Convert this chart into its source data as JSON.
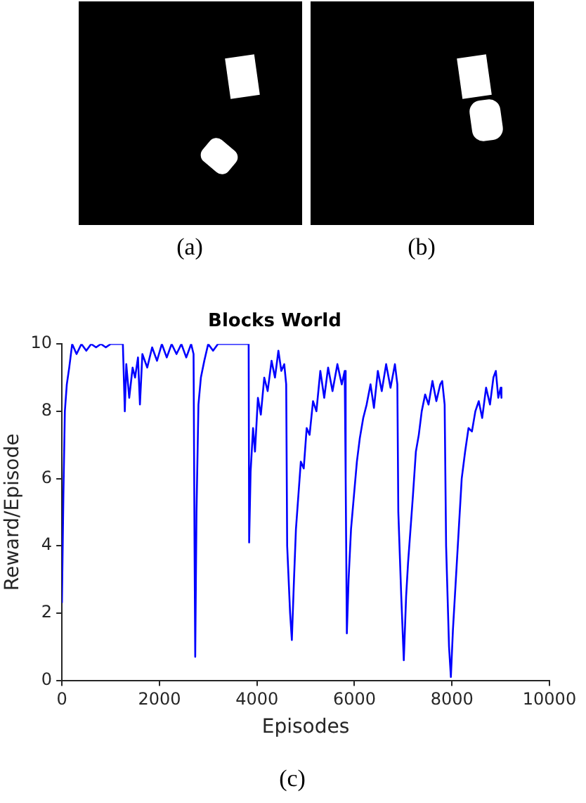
{
  "chart_data": {
    "type": "line",
    "title": "Blocks World",
    "xlabel": "Episodes",
    "ylabel": "Reward/Episode",
    "annotations": [
      "(a)",
      "(b)",
      "(c)"
    ],
    "xlim": [
      0,
      10000
    ],
    "xticks": [
      0,
      2000,
      4000,
      6000,
      8000,
      10000
    ],
    "ylim": [
      0,
      10
    ],
    "yticks": [
      0,
      2,
      4,
      6,
      8,
      10
    ],
    "grid": false,
    "legend": false,
    "marker": "none",
    "line_style": "solid",
    "series": [
      {
        "color": "#0000ff",
        "x": [
          0,
          30,
          60,
          100,
          150,
          210,
          300,
          400,
          500,
          600,
          700,
          800,
          900,
          1000,
          1100,
          1250,
          1290,
          1320,
          1380,
          1450,
          1500,
          1560,
          1600,
          1650,
          1750,
          1850,
          1950,
          2050,
          2150,
          2250,
          2350,
          2450,
          2550,
          2650,
          2700,
          2720,
          2734,
          2760,
          2800,
          2850,
          2920,
          3000,
          3100,
          3200,
          3500,
          3830,
          3840,
          3870,
          3920,
          3960,
          4020,
          4080,
          4150,
          4220,
          4300,
          4370,
          4440,
          4500,
          4560,
          4600,
          4620,
          4680,
          4716,
          4760,
          4800,
          4850,
          4900,
          4960,
          5020,
          5080,
          5150,
          5220,
          5300,
          5380,
          5460,
          5550,
          5650,
          5740,
          5800,
          5820,
          5844,
          5880,
          5930,
          5990,
          6050,
          6110,
          6180,
          6250,
          6330,
          6400,
          6480,
          6560,
          6650,
          6740,
          6830,
          6880,
          6900,
          6960,
          7012,
          7060,
          7100,
          7150,
          7200,
          7260,
          7320,
          7380,
          7450,
          7520,
          7600,
          7680,
          7760,
          7800,
          7850,
          7880,
          7940,
          7978,
          8020,
          8080,
          8140,
          8200,
          8270,
          8340,
          8410,
          8480,
          8550,
          8620,
          8700,
          8780,
          8850,
          8900,
          8950,
          9000,
          9015
        ],
        "values": [
          2.3,
          5.5,
          8,
          8.8,
          9.3,
          10,
          9.7,
          10,
          9.8,
          10,
          9.9,
          10,
          9.9,
          10,
          10,
          10,
          8.0,
          9.4,
          8.4,
          9.3,
          9.0,
          9.6,
          8.2,
          9.7,
          9.3,
          9.9,
          9.5,
          10,
          9.6,
          10,
          9.7,
          10,
          9.6,
          10,
          9.7,
          4,
          0.7,
          5,
          8.2,
          9,
          9.5,
          10,
          9.8,
          10,
          10,
          10,
          4.1,
          6.2,
          7.5,
          6.8,
          8.4,
          7.9,
          9.0,
          8.6,
          9.5,
          9.0,
          9.8,
          9.2,
          9.4,
          8.8,
          4,
          2,
          1.2,
          3,
          4.5,
          5.5,
          6.5,
          6.3,
          7.5,
          7.3,
          8.3,
          8.0,
          9.2,
          8.4,
          9.3,
          8.6,
          9.4,
          8.8,
          9.2,
          6,
          1.4,
          3,
          4.5,
          5.5,
          6.5,
          7.2,
          7.8,
          8.2,
          8.8,
          8.1,
          9.2,
          8.6,
          9.4,
          8.7,
          9.4,
          8.8,
          5,
          2.5,
          0.6,
          2.5,
          3.5,
          4.5,
          5.5,
          6.8,
          7.3,
          8.0,
          8.5,
          8.2,
          8.9,
          8.3,
          8.8,
          8.9,
          8.2,
          4,
          1,
          0.1,
          1.5,
          3,
          4.5,
          6,
          6.8,
          7.5,
          7.4,
          8.0,
          8.3,
          7.8,
          8.7,
          8.2,
          9.0,
          9.2,
          8.4,
          8.7,
          8.4
        ]
      }
    ]
  }
}
